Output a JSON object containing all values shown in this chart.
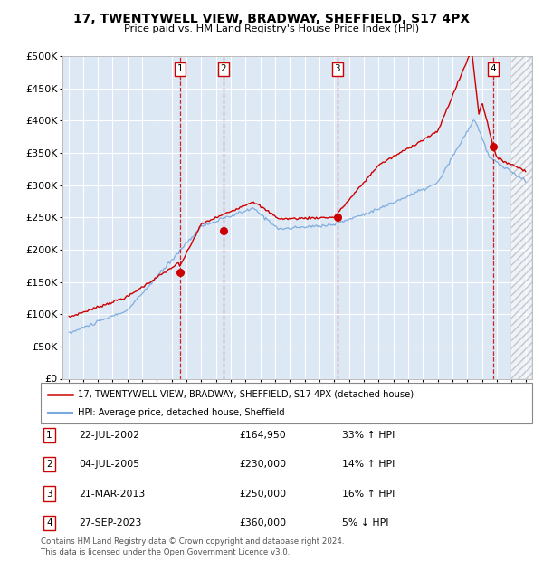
{
  "title": "17, TWENTYWELL VIEW, BRADWAY, SHEFFIELD, S17 4PX",
  "subtitle": "Price paid vs. HM Land Registry's House Price Index (HPI)",
  "ylim": [
    0,
    500000
  ],
  "background_color": "#dde8f5",
  "sale_times_float": [
    2002.554,
    2005.504,
    2013.22,
    2023.747
  ],
  "sale_prices": [
    164950,
    230000,
    250000,
    360000
  ],
  "sale_labels": [
    "1",
    "2",
    "3",
    "4"
  ],
  "legend_line1": "17, TWENTYWELL VIEW, BRADWAY, SHEFFIELD, S17 4PX (detached house)",
  "legend_line2": "HPI: Average price, detached house, Sheffield",
  "table_data": [
    [
      "1",
      "22-JUL-2002",
      "£164,950",
      "33% ↑ HPI"
    ],
    [
      "2",
      "04-JUL-2005",
      "£230,000",
      "14% ↑ HPI"
    ],
    [
      "3",
      "21-MAR-2013",
      "£250,000",
      "16% ↑ HPI"
    ],
    [
      "4",
      "27-SEP-2023",
      "£360,000",
      "5% ↓ HPI"
    ]
  ],
  "footer": "Contains HM Land Registry data © Crown copyright and database right 2024.\nThis data is licensed under the Open Government Licence v3.0.",
  "red_color": "#cc0000",
  "blue_color": "#7aaadd",
  "hatch_start": 2025.0,
  "xlim_left": 1994.6,
  "xlim_right": 2026.4
}
